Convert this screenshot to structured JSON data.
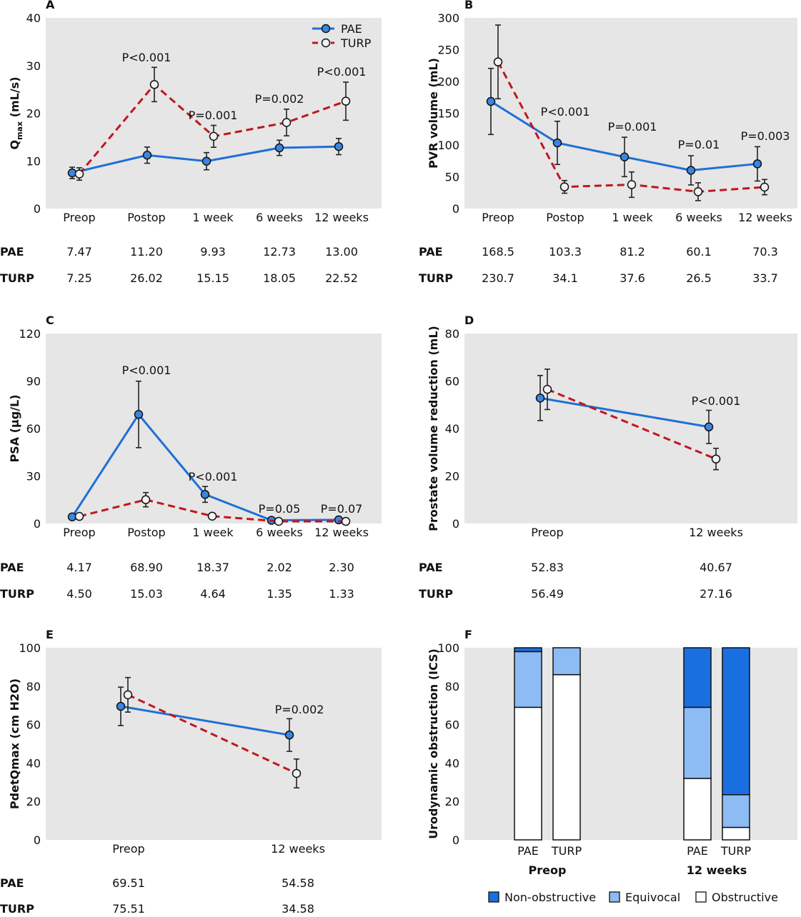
{
  "colors": {
    "pae": "#1f6fd6",
    "pae_marker": "#3a86e0",
    "turp": "#c0171c",
    "bg": "#e6e6e6",
    "non_obstructive": "#1a6fe0",
    "equivocal": "#8dbcf4",
    "obstructive": "#ffffff"
  },
  "legend": {
    "pae": "PAE",
    "turp": "TURP"
  },
  "chart_data": [
    {
      "id": "A",
      "type": "line",
      "title": "A",
      "ylabel": "Qmax (mL/s)",
      "ylabel_main": "Q",
      "ylabel_sub": "max",
      "ylabel_unit": " (mL/s)",
      "ylim": [
        0,
        40
      ],
      "yticks": [
        "0",
        "10",
        "20",
        "30",
        "40"
      ],
      "categories": [
        "Preop",
        "Postop",
        "1 week",
        "6 weeks",
        "12 weeks"
      ],
      "series": [
        {
          "name": "PAE",
          "values": [
            7.47,
            11.2,
            9.93,
            12.73,
            13.0
          ],
          "err": [
            1.2,
            1.7,
            1.8,
            1.6,
            1.7
          ]
        },
        {
          "name": "TURP",
          "values": [
            7.25,
            26.02,
            15.15,
            18.05,
            22.52
          ],
          "err": [
            1.3,
            3.6,
            2.3,
            2.8,
            4.0
          ]
        }
      ],
      "pvalues": [
        "",
        "P<0.001",
        "P=0.001",
        "P=0.002",
        "P<0.001"
      ],
      "table": {
        "PAE": [
          "7.47",
          "11.20",
          "9.93",
          "12.73",
          "13.00"
        ],
        "TURP": [
          "7.25",
          "26.02",
          "15.15",
          "18.05",
          "22.52"
        ]
      }
    },
    {
      "id": "B",
      "type": "line",
      "title": "B",
      "ylabel": "PVR volume (mL)",
      "ylim": [
        0,
        300
      ],
      "yticks": [
        "0",
        "50",
        "100",
        "150",
        "200",
        "250",
        "300"
      ],
      "categories": [
        "Preop",
        "Postop",
        "1 week",
        "6 weeks",
        "12 weeks"
      ],
      "series": [
        {
          "name": "PAE",
          "values": [
            168.5,
            103.3,
            81.2,
            60.1,
            70.3
          ],
          "err": [
            52,
            34,
            31,
            23,
            27
          ]
        },
        {
          "name": "TURP",
          "values": [
            230.7,
            34.1,
            37.6,
            26.5,
            33.7
          ],
          "err": [
            58,
            10,
            20,
            14,
            12
          ]
        }
      ],
      "pvalues": [
        "",
        "P<0.001",
        "P=0.001",
        "P=0.01",
        "P=0.003"
      ],
      "table": {
        "PAE": [
          "168.5",
          "103.3",
          "81.2",
          "60.1",
          "70.3"
        ],
        "TURP": [
          "230.7",
          "34.1",
          "37.6",
          "26.5",
          "33.7"
        ]
      }
    },
    {
      "id": "C",
      "type": "line",
      "title": "C",
      "ylabel": "PSA (µg/L)",
      "ylim": [
        0,
        120
      ],
      "yticks": [
        "0",
        "30",
        "60",
        "90",
        "120"
      ],
      "categories": [
        "Preop",
        "Postop",
        "1 week",
        "6 weeks",
        "12 weeks"
      ],
      "series": [
        {
          "name": "PAE",
          "values": [
            4.17,
            68.9,
            18.37,
            2.02,
            2.3
          ],
          "err": [
            0.8,
            21,
            5,
            0.6,
            0.6
          ]
        },
        {
          "name": "TURP",
          "values": [
            4.5,
            15.03,
            4.64,
            1.35,
            1.33
          ],
          "err": [
            0.9,
            4.5,
            1.5,
            0.4,
            0.4
          ]
        }
      ],
      "pvalues": [
        "",
        "P<0.001",
        "P<0.001",
        "P=0.05",
        "P=0.07"
      ],
      "table": {
        "PAE": [
          "4.17",
          "68.90",
          "18.37",
          "2.02",
          "2.30"
        ],
        "TURP": [
          "4.50",
          "15.03",
          "4.64",
          "1.35",
          "1.33"
        ]
      }
    },
    {
      "id": "D",
      "type": "line",
      "title": "D",
      "ylabel": "Prostate volume reduction (mL)",
      "ylim": [
        0,
        80
      ],
      "yticks": [
        "0",
        "20",
        "40",
        "60",
        "80"
      ],
      "categories": [
        "Preop",
        "12 weeks"
      ],
      "series": [
        {
          "name": "PAE",
          "values": [
            52.83,
            40.67
          ],
          "err": [
            9.5,
            7
          ]
        },
        {
          "name": "TURP",
          "values": [
            56.49,
            27.16
          ],
          "err": [
            8.5,
            4.5
          ]
        }
      ],
      "pvalues": [
        "",
        "P<0.001"
      ],
      "table": {
        "PAE": [
          "52.83",
          "40.67"
        ],
        "TURP": [
          "56.49",
          "27.16"
        ]
      }
    },
    {
      "id": "E",
      "type": "line",
      "title": "E",
      "ylabel": "PdetQmax (cm H2O)",
      "ylim": [
        0,
        100
      ],
      "yticks": [
        "0",
        "20",
        "40",
        "60",
        "80",
        "100"
      ],
      "categories": [
        "Preop",
        "12 weeks"
      ],
      "series": [
        {
          "name": "PAE",
          "values": [
            69.51,
            54.58
          ],
          "err": [
            10,
            8.5
          ]
        },
        {
          "name": "TURP",
          "values": [
            75.51,
            34.58
          ],
          "err": [
            9,
            7.5
          ]
        }
      ],
      "pvalues": [
        "",
        "P=0.002"
      ],
      "table": {
        "PAE": [
          "69.51",
          "54.58"
        ],
        "TURP": [
          "75.51",
          "34.58"
        ]
      }
    },
    {
      "id": "F",
      "type": "bar",
      "title": "F",
      "ylabel": "Urodynamic obstruction (ICS)",
      "ylim": [
        0,
        100
      ],
      "yticks": [
        "0",
        "20",
        "40",
        "60",
        "80",
        "100"
      ],
      "groups": [
        "Preop",
        "12 weeks"
      ],
      "bar_labels": [
        "PAE",
        "TURP"
      ],
      "bars": [
        {
          "group": "Preop",
          "label": "PAE",
          "obstructive": 69,
          "equivocal": 29,
          "non_obstructive": 2
        },
        {
          "group": "Preop",
          "label": "TURP",
          "obstructive": 86,
          "equivocal": 14,
          "non_obstructive": 0
        },
        {
          "group": "12 weeks",
          "label": "PAE",
          "obstructive": 32,
          "equivocal": 37,
          "non_obstructive": 31
        },
        {
          "group": "12 weeks",
          "label": "TURP",
          "obstructive": 6.5,
          "equivocal": 17,
          "non_obstructive": 76.5
        }
      ],
      "legend": [
        "Non-obstructive",
        "Equivocal",
        "Obstructive"
      ]
    }
  ]
}
